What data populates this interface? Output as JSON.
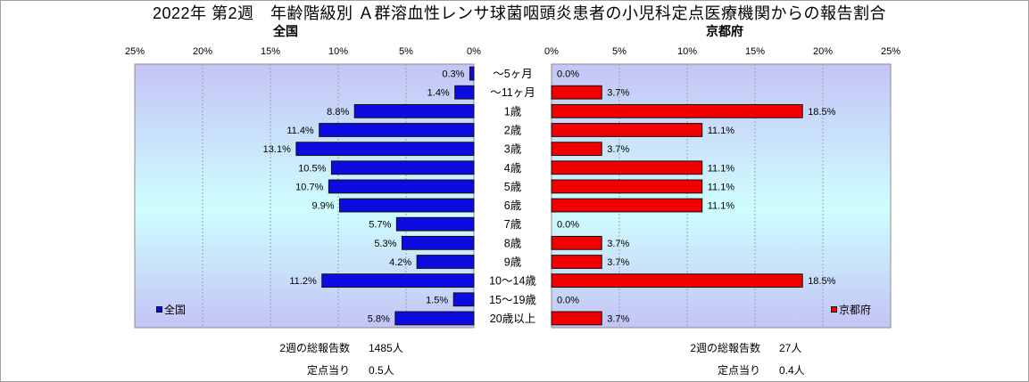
{
  "chart_data": {
    "type": "bar",
    "orientation": "horizontal",
    "title": "2022年 第2週　年齢階級別 Ａ群溶血性レンサ球菌咽頭炎患者の小児科定点医療機関からの報告割合",
    "categories": [
      "～5ヶ月",
      "～11ヶ月",
      "1歳",
      "2歳",
      "3歳",
      "4歳",
      "5歳",
      "6歳",
      "7歳",
      "8歳",
      "9歳",
      "10～14歳",
      "15～19歳",
      "20歳以上"
    ],
    "unit": "%",
    "xlim": [
      0,
      25
    ],
    "xticks": [
      0,
      5,
      10,
      15,
      20,
      25
    ],
    "grid": true,
    "series": [
      {
        "name": "全国",
        "panel_title": "全国",
        "axis_reversed": true,
        "legend_position": "bottom-left",
        "color": "#0c0ce0",
        "values": [
          0.3,
          1.4,
          8.8,
          11.4,
          13.1,
          10.5,
          10.7,
          9.9,
          5.7,
          5.3,
          4.2,
          11.2,
          1.5,
          5.8
        ]
      },
      {
        "name": "京都府",
        "panel_title": "京都府",
        "axis_reversed": false,
        "legend_position": "bottom-right",
        "color": "#f20000",
        "values": [
          0.0,
          3.7,
          18.5,
          11.1,
          3.7,
          11.1,
          11.1,
          11.1,
          0.0,
          3.7,
          3.7,
          18.5,
          0.0,
          3.7
        ]
      }
    ]
  },
  "stats": [
    {
      "total_label": "2週の総報告数",
      "total_value": "1485人",
      "per_site_label": "定点当り",
      "per_site_value": "0.5人"
    },
    {
      "total_label": "2週の総報告数",
      "total_value": "27人",
      "per_site_label": "定点当り",
      "per_site_value": "0.4人"
    }
  ]
}
